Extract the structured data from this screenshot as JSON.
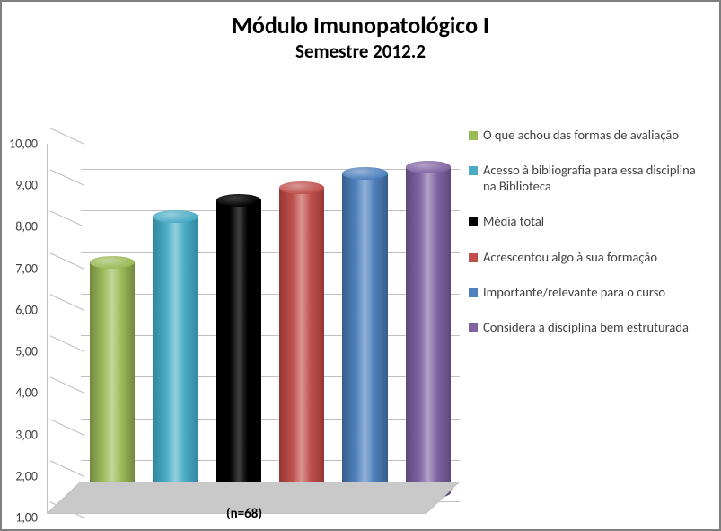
{
  "chart": {
    "title": "Módulo Imunopatológico I",
    "subtitle": "Semestre 2012.2",
    "title_fontsize": 26,
    "subtitle_fontsize": 21,
    "title_color": "#000000",
    "x_label": "(n=68)",
    "x_label_fontsize": 15,
    "type": "3d-cylinder-bar",
    "background_color": "#ffffff",
    "border_color": "#7f7f7f",
    "grid_color": "#bfbfbf",
    "axis_text_color": "#404040",
    "legend_text_color": "#404040",
    "axis_fontsize": 14,
    "legend_fontsize": 14.5,
    "ylim": [
      1.0,
      10.0
    ],
    "ytick_step": 1.0,
    "ytick_labels": [
      "1,00",
      "2,00",
      "3,00",
      "4,00",
      "5,00",
      "6,00",
      "7,00",
      "8,00",
      "9,00",
      "10,00"
    ],
    "bar_width_rel": 0.72,
    "series": [
      {
        "label": "O que achou das formas de avaliação",
        "value": 6.8,
        "fill": "#9bbb59",
        "fill_dark": "#71893f",
        "fill_light": "#c3d69b"
      },
      {
        "label": "Acesso à bibliografia para essa disciplina na Biblioteca",
        "value": 7.9,
        "fill": "#4bacc6",
        "fill_dark": "#31859c",
        "fill_light": "#93cddd"
      },
      {
        "label": "Média total",
        "value": 8.3,
        "fill": "#000000",
        "fill_dark": "#000000",
        "fill_light": "#3f3f3f"
      },
      {
        "label": "Acrescentou algo à sua formação",
        "value": 8.6,
        "fill": "#c0504d",
        "fill_dark": "#953735",
        "fill_light": "#d99694"
      },
      {
        "label": "Importante/relevante para o curso",
        "value": 8.95,
        "fill": "#4f81bd",
        "fill_dark": "#385d8a",
        "fill_light": "#95b3d7"
      },
      {
        "label": "Considera a disciplina bem estruturada",
        "value": 9.1,
        "fill": "#8064a2",
        "fill_dark": "#5f497a",
        "fill_light": "#b2a1c7"
      }
    ]
  }
}
